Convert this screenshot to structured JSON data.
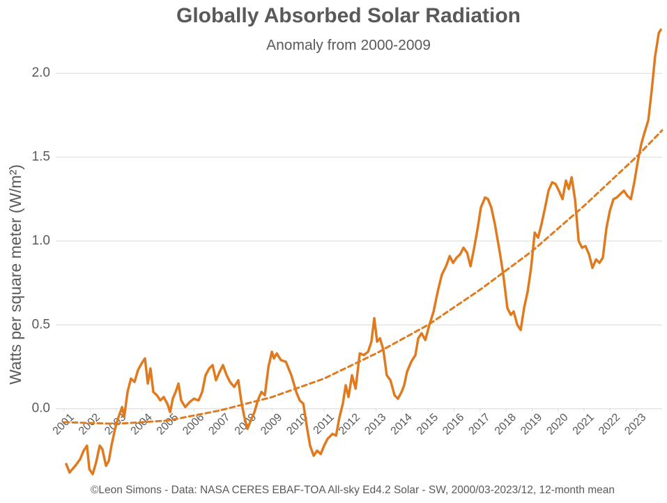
{
  "chart_data": {
    "type": "line",
    "title": "Globally Absorbed Solar Radiation",
    "subtitle": "Anomaly from 2000-2009",
    "y_label": "Watts per square meter (W/m²)",
    "footer": "©Leon Simons - Data: NASA CERES EBAF-TOA All-sky Ed4.2 Solar - SW, 2000/03-2023/12, 12-month mean",
    "ylim": [
      -0.4,
      2.3
    ],
    "yticks": [
      {
        "value": 0,
        "label": "0.0"
      },
      0.5,
      {
        "value": 1,
        "label": "1.0"
      },
      1.5,
      {
        "value": 2,
        "label": "2.0"
      }
    ],
    "xlim": [
      2001,
      2024
    ],
    "xticks": [
      2001,
      2002,
      2003,
      2004,
      2005,
      2006,
      2007,
      2008,
      2009,
      2010,
      2011,
      2012,
      2013,
      2014,
      2015,
      2016,
      2017,
      2018,
      2019,
      2020,
      2021,
      2022,
      2023
    ],
    "grid": true,
    "x": [
      2001.08,
      2001.21,
      2001.43,
      2001.62,
      2001.75,
      2001.88,
      2001.97,
      2002.1,
      2002.23,
      2002.37,
      2002.47,
      2002.61,
      2002.72,
      2002.82,
      2002.96,
      2003.09,
      2003.23,
      2003.31,
      2003.44,
      2003.57,
      2003.71,
      2003.84,
      2003.98,
      2004.11,
      2004.22,
      2004.32,
      2004.43,
      2004.57,
      2004.7,
      2004.83,
      2004.97,
      2005.08,
      2005.18,
      2005.29,
      2005.4,
      2005.5,
      2005.66,
      2005.83,
      2005.99,
      2006.17,
      2006.31,
      2006.44,
      2006.58,
      2006.71,
      2006.84,
      2006.98,
      2007.11,
      2007.25,
      2007.38,
      2007.54,
      2007.7,
      2007.81,
      2007.92,
      2008.05,
      2008.18,
      2008.32,
      2008.45,
      2008.59,
      2008.72,
      2008.86,
      2008.99,
      2009.07,
      2009.18,
      2009.34,
      2009.53,
      2009.74,
      2009.93,
      2010.06,
      2010.2,
      2010.33,
      2010.46,
      2010.6,
      2010.73,
      2010.87,
      2011.0,
      2011.13,
      2011.32,
      2011.46,
      2011.59,
      2011.72,
      2011.83,
      2011.94,
      2012.07,
      2012.21,
      2012.37,
      2012.53,
      2012.69,
      2012.82,
      2012.93,
      2013.04,
      2013.15,
      2013.28,
      2013.41,
      2013.55,
      2013.71,
      2013.84,
      2013.98,
      2014.08,
      2014.19,
      2014.35,
      2014.51,
      2014.62,
      2014.75,
      2014.89,
      2015.05,
      2015.21,
      2015.37,
      2015.53,
      2015.69,
      2015.83,
      2015.96,
      2016.09,
      2016.23,
      2016.36,
      2016.5,
      2016.63,
      2016.76,
      2016.9,
      2017.03,
      2017.19,
      2017.3,
      2017.43,
      2017.57,
      2017.76,
      2017.89,
      2018.05,
      2018.18,
      2018.29,
      2018.43,
      2018.56,
      2018.69,
      2018.83,
      2018.96,
      2019.1,
      2019.23,
      2019.36,
      2019.5,
      2019.63,
      2019.77,
      2019.9,
      2020.03,
      2020.17,
      2020.3,
      2020.41,
      2020.52,
      2020.65,
      2020.79,
      2020.92,
      2021.05,
      2021.19,
      2021.32,
      2021.46,
      2021.59,
      2021.72,
      2021.86,
      2021.99,
      2022.13,
      2022.26,
      2022.39,
      2022.53,
      2022.66,
      2022.8,
      2022.93,
      2023.06,
      2023.2,
      2023.33,
      2023.47,
      2023.6,
      2023.73,
      2023.87,
      2023.95
    ],
    "series": [
      {
        "color": "#e07a1f",
        "line_style": "solid",
        "values": [
          -0.33,
          -0.38,
          -0.34,
          -0.3,
          -0.25,
          -0.22,
          -0.36,
          -0.39,
          -0.32,
          -0.22,
          -0.24,
          -0.34,
          -0.31,
          -0.22,
          -0.12,
          -0.05,
          0.01,
          -0.05,
          0.1,
          0.18,
          0.16,
          0.23,
          0.27,
          0.3,
          0.15,
          0.24,
          0.1,
          0.08,
          0.05,
          0.07,
          0.03,
          -0.02,
          0.06,
          0.1,
          0.15,
          0.05,
          0.01,
          0.04,
          0.06,
          0.05,
          0.1,
          0.2,
          0.24,
          0.26,
          0.17,
          0.22,
          0.26,
          0.2,
          0.16,
          0.13,
          0.17,
          0.05,
          -0.04,
          -0.12,
          -0.07,
          -0.02,
          0.05,
          0.1,
          0.08,
          0.25,
          0.34,
          0.3,
          0.33,
          0.29,
          0.28,
          0.2,
          0.1,
          0.05,
          0.03,
          -0.1,
          -0.22,
          -0.28,
          -0.25,
          -0.27,
          -0.22,
          -0.18,
          -0.15,
          -0.16,
          -0.05,
          0.03,
          0.14,
          0.07,
          0.2,
          0.12,
          0.33,
          0.32,
          0.34,
          0.4,
          0.54,
          0.4,
          0.42,
          0.35,
          0.2,
          0.17,
          0.08,
          0.06,
          0.1,
          0.14,
          0.22,
          0.28,
          0.32,
          0.42,
          0.45,
          0.41,
          0.5,
          0.58,
          0.7,
          0.8,
          0.85,
          0.91,
          0.87,
          0.9,
          0.92,
          0.96,
          0.93,
          0.85,
          0.95,
          1.07,
          1.2,
          1.26,
          1.25,
          1.2,
          1.1,
          0.93,
          0.8,
          0.6,
          0.56,
          0.58,
          0.5,
          0.47,
          0.6,
          0.7,
          0.84,
          1.05,
          1.02,
          1.1,
          1.2,
          1.3,
          1.35,
          1.34,
          1.3,
          1.25,
          1.36,
          1.31,
          1.38,
          1.25,
          1.0,
          0.96,
          0.97,
          0.92,
          0.84,
          0.89,
          0.87,
          0.9,
          1.08,
          1.18,
          1.25,
          1.26,
          1.28,
          1.3,
          1.27,
          1.25,
          1.35,
          1.47,
          1.58,
          1.65,
          1.72,
          1.9,
          2.1,
          2.24,
          2.26
        ]
      },
      {
        "color": "#e07a1f",
        "line_style": "dashed",
        "x": [
          2001,
          2003,
          2005,
          2007,
          2009,
          2011,
          2013,
          2015,
          2017,
          2019,
          2021,
          2023,
          2024
        ],
        "values": [
          -0.08,
          -0.09,
          -0.07,
          -0.01,
          0.07,
          0.18,
          0.33,
          0.5,
          0.71,
          0.94,
          1.21,
          1.5,
          1.66
        ]
      }
    ]
  }
}
